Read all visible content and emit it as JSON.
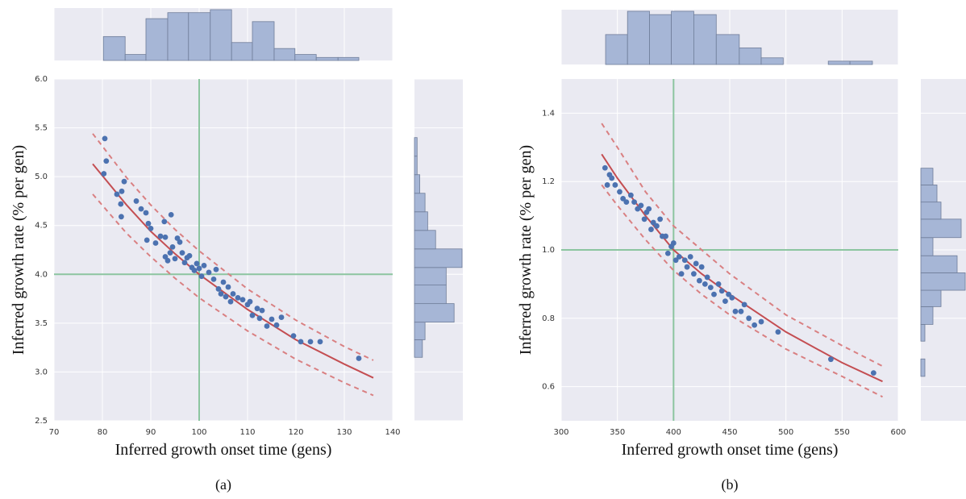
{
  "chart_data": [
    {
      "type": "scatter",
      "caption": "(a)",
      "x_label": "Inferred growth onset time (gens)",
      "y_label": "Inferred growth rate (% per gen)",
      "xlim": [
        70,
        140
      ],
      "xticks": [
        70,
        80,
        90,
        100,
        110,
        120,
        130,
        140
      ],
      "ylim": [
        2.5,
        6.0
      ],
      "yticks": [
        2.5,
        {
          "value": 3.0,
          "label": "3.0"
        },
        3.5,
        {
          "value": 4.0,
          "label": "4.0"
        },
        4.5,
        {
          "value": 5.0,
          "label": "5.0"
        },
        5.5,
        {
          "value": 6.0,
          "label": "6.0"
        }
      ],
      "grid": true,
      "point_color": "#4c72b0",
      "ref_color": "#8cc5a0",
      "ref_x": 100,
      "ref_y": 4.0,
      "x": [
        80.5,
        80.8,
        80.3,
        83,
        84,
        84.5,
        83.8,
        83.9,
        87,
        88,
        89,
        89.5,
        89.2,
        90,
        91,
        92,
        93,
        92.8,
        93,
        93.5,
        94,
        94.2,
        94.5,
        95,
        95.5,
        96,
        96.5,
        97,
        97.5,
        98,
        98.5,
        99,
        99.5,
        100,
        100.5,
        101,
        102,
        103,
        103.5,
        104,
        104.5,
        105,
        105.5,
        106,
        106.5,
        107,
        108,
        109,
        110,
        110.5,
        111,
        112,
        112.5,
        113,
        114,
        115,
        116,
        117,
        119.5,
        121,
        123,
        125,
        133
      ],
      "values": [
        5.39,
        5.16,
        5.03,
        4.82,
        4.85,
        4.95,
        4.72,
        4.59,
        4.75,
        4.67,
        4.63,
        4.52,
        4.35,
        4.47,
        4.32,
        4.39,
        4.38,
        4.54,
        4.18,
        4.14,
        4.22,
        4.61,
        4.28,
        4.16,
        4.37,
        4.33,
        4.22,
        4.12,
        4.17,
        4.19,
        4.07,
        4.04,
        4.11,
        4.06,
        3.98,
        4.09,
        4.02,
        3.95,
        4.05,
        3.85,
        3.8,
        3.92,
        3.77,
        3.87,
        3.72,
        3.8,
        3.76,
        3.74,
        3.69,
        3.72,
        3.58,
        3.65,
        3.55,
        3.63,
        3.47,
        3.54,
        3.48,
        3.56,
        3.37,
        3.31,
        3.31,
        3.31,
        3.14
      ],
      "series": [
        {
          "color": "#c44e52",
          "dashed": false,
          "x": [
            78,
            85,
            90,
            95,
            100,
            110,
            120,
            130,
            136
          ],
          "values": [
            5.13,
            4.71,
            4.44,
            4.21,
            4.0,
            3.64,
            3.33,
            3.08,
            2.94
          ]
        },
        {
          "color": "#d98082",
          "dashed": true,
          "x": [
            78,
            85,
            90,
            95,
            100,
            110,
            120,
            130,
            136
          ],
          "values": [
            5.44,
            4.99,
            4.71,
            4.46,
            4.24,
            3.85,
            3.53,
            3.26,
            3.12
          ]
        },
        {
          "color": "#d98082",
          "dashed": true,
          "x": [
            78,
            85,
            90,
            95,
            100,
            110,
            120,
            130,
            136
          ],
          "values": [
            4.82,
            4.42,
            4.18,
            3.96,
            3.76,
            3.42,
            3.13,
            2.89,
            2.76
          ]
        }
      ],
      "hist_color": "#a6b6d6",
      "x_hist": {
        "bins": [
          80.2,
          84.7,
          89,
          93.5,
          97.8,
          102.3,
          106.7,
          111,
          115.5,
          119.8,
          124.2,
          128.7,
          133
        ],
        "counts": [
          8,
          2,
          14,
          16,
          16,
          17,
          6,
          13,
          4,
          2,
          1,
          1
        ]
      },
      "y_hist": {
        "bins": [
          3.15,
          3.33,
          3.51,
          3.7,
          3.89,
          4.07,
          4.26,
          4.45,
          4.64,
          4.83,
          5.02,
          5.21,
          5.4
        ],
        "counts": [
          3,
          4,
          15,
          12,
          12,
          18,
          8,
          5,
          4,
          2,
          1,
          1
        ]
      }
    },
    {
      "type": "scatter",
      "caption": "(b)",
      "x_label": "Inferred growth onset time (gens)",
      "y_label": "Inferred growth rate (% per gen)",
      "xlim": [
        300,
        600
      ],
      "xticks": [
        300,
        350,
        400,
        450,
        500,
        550,
        600
      ],
      "ylim": [
        0.5,
        1.5
      ],
      "yticks": [
        0.6,
        0.8,
        {
          "value": 1.0,
          "label": "1.0"
        },
        1.2,
        1.4
      ],
      "grid": true,
      "point_color": "#4c72b0",
      "ref_color": "#8cc5a0",
      "ref_x": 400,
      "ref_y": 1.0,
      "x": [
        339,
        341,
        343,
        345,
        348,
        352,
        355,
        358,
        362,
        365,
        368,
        371,
        374,
        376,
        378,
        380,
        382,
        385,
        388,
        390,
        393,
        395,
        398,
        400,
        402,
        405,
        407,
        410,
        412,
        415,
        418,
        420,
        423,
        425,
        428,
        430,
        433,
        436,
        440,
        443,
        446,
        449,
        452,
        455,
        460,
        463,
        467,
        472,
        478,
        493,
        540,
        578
      ],
      "values": [
        1.24,
        1.19,
        1.22,
        1.21,
        1.19,
        1.17,
        1.15,
        1.14,
        1.16,
        1.14,
        1.12,
        1.13,
        1.09,
        1.11,
        1.12,
        1.06,
        1.08,
        1.07,
        1.09,
        1.04,
        1.04,
        0.99,
        1.01,
        1.02,
        0.97,
        0.98,
        0.93,
        0.97,
        0.95,
        0.98,
        0.93,
        0.96,
        0.91,
        0.95,
        0.9,
        0.92,
        0.89,
        0.87,
        0.9,
        0.88,
        0.85,
        0.87,
        0.86,
        0.82,
        0.82,
        0.84,
        0.8,
        0.78,
        0.79,
        0.76,
        0.68,
        0.64
      ],
      "series": [
        {
          "color": "#c44e52",
          "dashed": false,
          "x": [
            336,
            350,
            375,
            400,
            425,
            450,
            500,
            550,
            586
          ],
          "values": [
            1.28,
            1.21,
            1.1,
            1.0,
            0.93,
            0.87,
            0.76,
            0.67,
            0.615
          ]
        },
        {
          "color": "#d98082",
          "dashed": true,
          "x": [
            336,
            350,
            375,
            400,
            425,
            450,
            500,
            550,
            586
          ],
          "values": [
            1.37,
            1.3,
            1.17,
            1.07,
            1.0,
            0.93,
            0.81,
            0.72,
            0.66
          ]
        },
        {
          "color": "#d98082",
          "dashed": true,
          "x": [
            336,
            350,
            375,
            400,
            425,
            450,
            500,
            550,
            586
          ],
          "values": [
            1.19,
            1.13,
            1.03,
            0.94,
            0.87,
            0.81,
            0.71,
            0.63,
            0.57
          ]
        }
      ],
      "hist_color": "#a6b6d6",
      "x_hist": {
        "bins": [
          339.5,
          359,
          378.6,
          398,
          418,
          438,
          458.5,
          478,
          497.6,
          517.6,
          537.7,
          557,
          577
        ],
        "counts": [
          9,
          16,
          15,
          16,
          15,
          9,
          5,
          2,
          0,
          0,
          1,
          1
        ]
      },
      "y_hist": {
        "bins": [
          0.63,
          0.681,
          0.733,
          0.782,
          0.834,
          0.882,
          0.933,
          0.983,
          1.036,
          1.09,
          1.14,
          1.19,
          1.239
        ],
        "counts": [
          1,
          0,
          1,
          3,
          5,
          11,
          9,
          3,
          10,
          5,
          4,
          3
        ]
      }
    }
  ]
}
